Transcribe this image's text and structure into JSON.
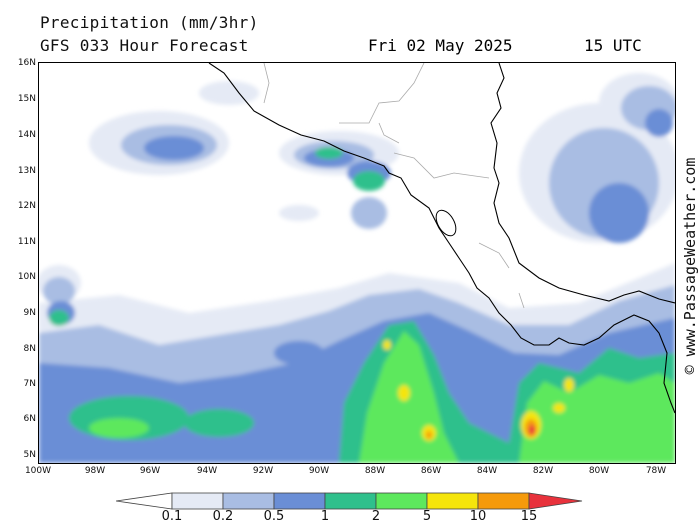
{
  "header": {
    "title": "Precipitation (mm/3hr)",
    "subtitle": "GFS 033 Hour Forecast",
    "date": "Fri 02 May 2025",
    "time": "15 UTC"
  },
  "watermark": "© www.PassageWeather.com",
  "map": {
    "lat_labels": [
      "16N",
      "15N",
      "14N",
      "13N",
      "12N",
      "11N",
      "10N",
      "9N",
      "8N",
      "7N",
      "6N",
      "5N"
    ],
    "lon_labels": [
      "100W",
      "98W",
      "96W",
      "94W",
      "92W",
      "90W",
      "88W",
      "86W",
      "84W",
      "82W",
      "80W",
      "78W"
    ],
    "lat_range": [
      5,
      16
    ],
    "lon_range": [
      -100,
      -78
    ]
  },
  "legend": {
    "labels": [
      "0.1",
      "0.2",
      "0.5",
      "1",
      "2",
      "5",
      "10",
      "15"
    ],
    "colors": [
      "#e5eaf5",
      "#a9bde3",
      "#6a8ed6",
      "#2fc08c",
      "#5de85d",
      "#f5e50b",
      "#f59a0b",
      "#e8323c"
    ]
  }
}
